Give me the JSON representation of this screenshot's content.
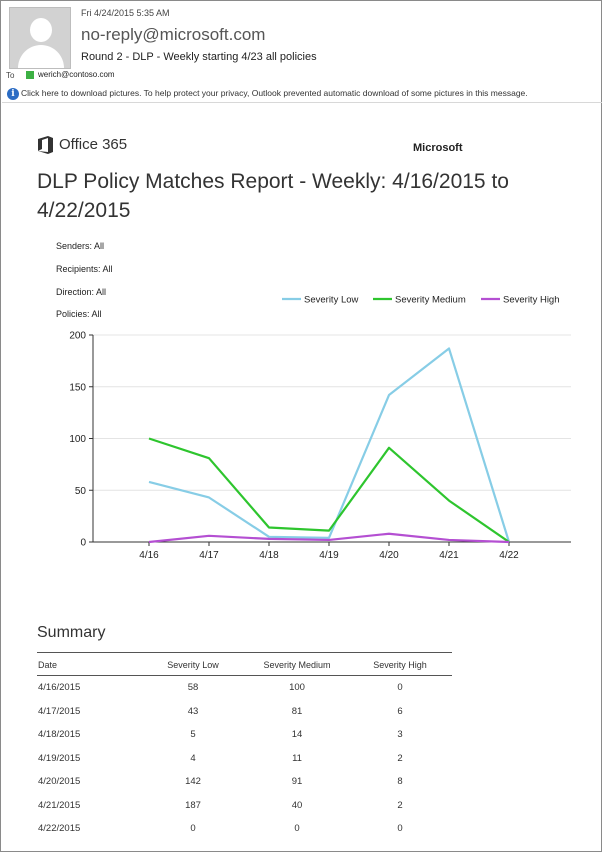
{
  "email": {
    "date": "Fri 4/24/2015 5:35 AM",
    "sender": "no-reply@microsoft.com",
    "subject": "Round 2 - DLP - Weekly starting 4/23 all policies",
    "to_label": "To",
    "to_address": "werich@contoso.com",
    "info_bar": "Click here to download pictures. To help protect your privacy, Outlook prevented automatic download of some pictures in this message."
  },
  "report": {
    "brand": "Office 365",
    "company": "Microsoft",
    "title": "DLP Policy Matches Report - Weekly: 4/16/2015 to 4/22/2015",
    "filters": [
      "Senders: All",
      "Recipients: All",
      "Direction: All",
      "Policies: All"
    ]
  },
  "chart_data": {
    "type": "line",
    "categories": [
      "4/16",
      "4/17",
      "4/18",
      "4/19",
      "4/20",
      "4/21",
      "4/22"
    ],
    "series": [
      {
        "name": "Severity Low",
        "color": "#87cde6",
        "values": [
          58,
          43,
          5,
          4,
          142,
          187,
          0
        ]
      },
      {
        "name": "Severity Medium",
        "color": "#2ec52e",
        "values": [
          100,
          81,
          14,
          11,
          91,
          40,
          0
        ]
      },
      {
        "name": "Severity High",
        "color": "#b44fd2",
        "values": [
          0,
          6,
          3,
          2,
          8,
          2,
          0
        ]
      }
    ],
    "yticks": [
      0,
      50,
      100,
      150,
      200
    ],
    "ylim": [
      0,
      200
    ],
    "grid": true,
    "legend_position": "top-right"
  },
  "summary": {
    "title": "Summary",
    "headers": [
      "Date",
      "Severity Low",
      "Severity Medium",
      "Severity High"
    ],
    "rows": [
      [
        "4/16/2015",
        "58",
        "100",
        "0"
      ],
      [
        "4/17/2015",
        "43",
        "81",
        "6"
      ],
      [
        "4/18/2015",
        "5",
        "14",
        "3"
      ],
      [
        "4/19/2015",
        "4",
        "11",
        "2"
      ],
      [
        "4/20/2015",
        "142",
        "91",
        "8"
      ],
      [
        "4/21/2015",
        "187",
        "40",
        "2"
      ],
      [
        "4/22/2015",
        "0",
        "0",
        "0"
      ]
    ]
  },
  "colors": {
    "info_icon": "#2b6cc4",
    "contact_marker": "#3cb043"
  }
}
